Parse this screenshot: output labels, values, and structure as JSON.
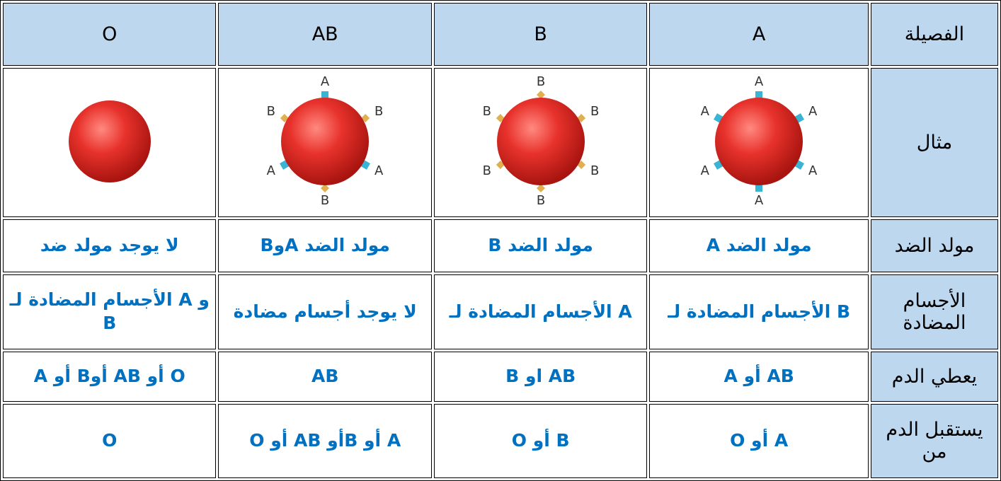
{
  "table": {
    "header": [
      "الفصيلة",
      "A",
      "B",
      "AB",
      "O"
    ],
    "rows": [
      {
        "label": "مثال",
        "cells": [
          {
            "markers": [
              "A",
              "A",
              "A",
              "A",
              "A",
              "A"
            ]
          },
          {
            "markers": [
              "B",
              "B",
              "B",
              "B",
              "B",
              "B"
            ]
          },
          {
            "markers": [
              "A",
              "B",
              "A",
              "B",
              "A",
              "B"
            ]
          },
          {
            "markers": []
          }
        ]
      },
      {
        "label": "مولد الضد",
        "cells": [
          "مولد الضد A",
          "مولد الضد B",
          "مولد الضد  AوB",
          "لا يوجد مولد ضد"
        ]
      },
      {
        "label": "الأجسام المضادة",
        "cells": [
          "الأجسام المضادة لـ B",
          "الأجسام المضادة لـ A",
          "لا يوجد أجسام مضادة",
          "الأجسام المضادة لـ A و B"
        ]
      },
      {
        "label": "يعطي الدم",
        "cells": [
          "A أو AB",
          "B او AB",
          "AB",
          "A أو Bأو AB أو O"
        ]
      },
      {
        "label": "يستقبل الدم من",
        "cells": [
          "A أو O",
          "B أو O",
          "A أو Bأو AB أو O",
          "O"
        ]
      }
    ]
  }
}
